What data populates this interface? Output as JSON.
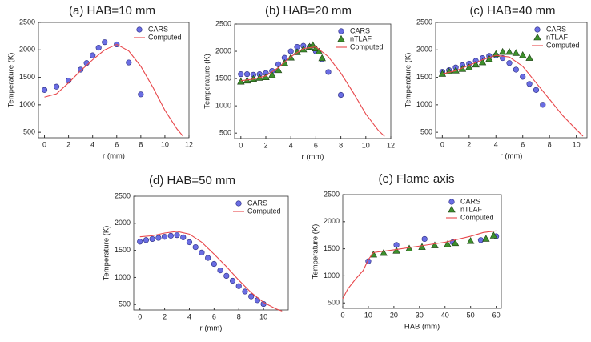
{
  "chart_data": [
    {
      "type": "line",
      "title": "(a) HAB=10 mm",
      "xlabel": "r (mm)",
      "ylabel": "Temperature (K)",
      "xlim": [
        -0.5,
        12
      ],
      "ylim": [
        400,
        2500
      ],
      "xticks": [
        0,
        2,
        4,
        6,
        8,
        10,
        12
      ],
      "yticks": [
        500,
        1000,
        1500,
        2000,
        2500
      ],
      "legend": "upper right",
      "series": [
        {
          "name": "CARS",
          "mode": "markers",
          "marker": "circle",
          "color": "#6a6de3",
          "x": [
            0,
            1,
            2,
            3,
            3.5,
            4,
            4.5,
            5,
            6,
            7,
            8
          ],
          "values": [
            1270,
            1330,
            1440,
            1640,
            1760,
            1900,
            2040,
            2140,
            2100,
            1770,
            1190
          ]
        },
        {
          "name": "Computed",
          "mode": "line",
          "color": "#e8474b",
          "x": [
            0,
            1,
            2,
            3,
            4,
            5,
            6,
            7,
            8,
            9,
            10,
            11,
            11.5
          ],
          "values": [
            1140,
            1200,
            1400,
            1620,
            1820,
            2000,
            2100,
            1980,
            1700,
            1320,
            900,
            560,
            430
          ]
        }
      ]
    },
    {
      "type": "line",
      "title": "(b) HAB=20 mm",
      "xlabel": "r (mm)",
      "ylabel": "Temperature (K)",
      "xlim": [
        -0.5,
        12
      ],
      "ylim": [
        400,
        2500
      ],
      "xticks": [
        0,
        2,
        4,
        6,
        8,
        10,
        12
      ],
      "yticks": [
        500,
        1000,
        1500,
        2000,
        2500
      ],
      "legend": "upper right",
      "series": [
        {
          "name": "CARS",
          "mode": "markers",
          "marker": "circle",
          "color": "#6a6de3",
          "x": [
            0,
            0.5,
            1,
            1.5,
            2,
            2.5,
            3,
            3.5,
            4,
            4.5,
            5,
            5.5,
            6,
            6.5,
            7,
            8
          ],
          "values": [
            1580,
            1580,
            1570,
            1580,
            1600,
            1640,
            1760,
            1880,
            2000,
            2080,
            2100,
            2080,
            2000,
            1850,
            1620,
            1200
          ]
        },
        {
          "name": "nTLAF",
          "mode": "markers",
          "marker": "triangle",
          "color": "#3d8f2c",
          "x": [
            0,
            0.5,
            1,
            1.5,
            2,
            2.5,
            3,
            3.5,
            4,
            4.5,
            5,
            5.5,
            5.75,
            6,
            6.25,
            6.5
          ],
          "values": [
            1440,
            1460,
            1490,
            1510,
            1520,
            1560,
            1650,
            1780,
            1880,
            1980,
            2030,
            2080,
            2110,
            2050,
            1990,
            1870
          ]
        },
        {
          "name": "Computed",
          "mode": "line",
          "color": "#e8474b",
          "x": [
            0,
            1,
            2,
            3,
            4,
            5,
            6,
            7,
            8,
            9,
            10,
            11,
            11.5
          ],
          "values": [
            1460,
            1490,
            1550,
            1700,
            1900,
            2050,
            2080,
            1900,
            1600,
            1240,
            850,
            550,
            440
          ]
        }
      ]
    },
    {
      "type": "line",
      "title": "(c) HAB=40 mm",
      "xlabel": "r (mm)",
      "ylabel": "Temperature (K)",
      "xlim": [
        -0.5,
        10.8
      ],
      "ylim": [
        400,
        2500
      ],
      "xticks": [
        0,
        2,
        4,
        6,
        8,
        10
      ],
      "yticks": [
        500,
        1000,
        1500,
        2000,
        2500
      ],
      "legend": "upper right",
      "series": [
        {
          "name": "CARS",
          "mode": "markers",
          "marker": "circle",
          "color": "#6a6de3",
          "x": [
            0,
            0.5,
            1,
            1.5,
            2,
            2.5,
            3,
            3.5,
            4,
            4.5,
            5,
            5.5,
            6,
            6.5,
            7,
            7.5
          ],
          "values": [
            1600,
            1630,
            1680,
            1720,
            1750,
            1800,
            1850,
            1890,
            1900,
            1850,
            1760,
            1640,
            1510,
            1380,
            1270,
            1000
          ]
        },
        {
          "name": "nTLAF",
          "mode": "markers",
          "marker": "triangle",
          "color": "#3d8f2c",
          "x": [
            0,
            0.5,
            1,
            1.5,
            2,
            2.5,
            3,
            3.5,
            4,
            4.5,
            5,
            5.5,
            6,
            6.5
          ],
          "values": [
            1560,
            1600,
            1620,
            1650,
            1680,
            1730,
            1770,
            1830,
            1920,
            1960,
            1960,
            1940,
            1900,
            1850
          ]
        },
        {
          "name": "Computed",
          "mode": "line",
          "color": "#e8474b",
          "x": [
            0,
            1,
            2,
            3,
            4,
            5,
            6,
            7,
            8,
            9,
            10,
            10.5
          ],
          "values": [
            1560,
            1620,
            1720,
            1820,
            1900,
            1870,
            1700,
            1400,
            1100,
            800,
            550,
            430
          ]
        }
      ]
    },
    {
      "type": "line",
      "title": "(d) HAB=50 mm",
      "xlabel": "r (mm)",
      "ylabel": "Temperature (K)",
      "xlim": [
        -0.5,
        12
      ],
      "ylim": [
        400,
        2500
      ],
      "xticks": [
        0,
        2,
        4,
        6,
        8,
        10
      ],
      "yticks": [
        500,
        1000,
        1500,
        2000,
        2500
      ],
      "legend": "upper right",
      "series": [
        {
          "name": "CARS",
          "mode": "markers",
          "marker": "circle",
          "color": "#6a6de3",
          "x": [
            0,
            0.5,
            1,
            1.5,
            2,
            2.5,
            3,
            3.5,
            4,
            4.5,
            5,
            5.5,
            6,
            6.5,
            7,
            7.5,
            8,
            8.5,
            9,
            9.5,
            10
          ],
          "values": [
            1660,
            1690,
            1710,
            1730,
            1750,
            1770,
            1780,
            1740,
            1650,
            1560,
            1460,
            1360,
            1250,
            1130,
            1030,
            940,
            840,
            740,
            650,
            580,
            510
          ]
        },
        {
          "name": "Computed",
          "mode": "line",
          "color": "#e8474b",
          "x": [
            0,
            1,
            2,
            3,
            4,
            5,
            6,
            7,
            8,
            9,
            10,
            11,
            11.5
          ],
          "values": [
            1750,
            1770,
            1820,
            1850,
            1800,
            1650,
            1430,
            1200,
            950,
            720,
            540,
            420,
            380
          ]
        }
      ]
    },
    {
      "type": "line",
      "title": "(e) Flame axis",
      "xlabel": "HAB (mm)",
      "ylabel": "Temperature (K)",
      "xlim": [
        0,
        62
      ],
      "ylim": [
        400,
        2500
      ],
      "xticks": [
        0,
        10,
        20,
        30,
        40,
        50,
        60
      ],
      "yticks": [
        500,
        1000,
        1500,
        2000,
        2500
      ],
      "legend": "upper right",
      "series": [
        {
          "name": "CARS",
          "mode": "markers",
          "marker": "circle",
          "color": "#6a6de3",
          "x": [
            10,
            21,
            32,
            43,
            54,
            60
          ],
          "values": [
            1270,
            1570,
            1680,
            1620,
            1660,
            1730
          ]
        },
        {
          "name": "nTLAF",
          "mode": "markers",
          "marker": "triangle",
          "color": "#3d8f2c",
          "x": [
            12,
            16,
            21,
            26,
            31,
            36,
            41,
            44,
            50,
            56,
            59
          ],
          "values": [
            1390,
            1420,
            1460,
            1500,
            1530,
            1560,
            1580,
            1600,
            1640,
            1680,
            1740
          ]
        },
        {
          "name": "Computed",
          "mode": "line",
          "color": "#e8474b",
          "x": [
            0,
            2,
            5,
            8,
            10,
            12,
            20,
            30,
            40,
            50,
            55,
            60
          ],
          "values": [
            580,
            760,
            940,
            1100,
            1300,
            1430,
            1480,
            1550,
            1620,
            1730,
            1800,
            1830
          ]
        }
      ]
    }
  ]
}
